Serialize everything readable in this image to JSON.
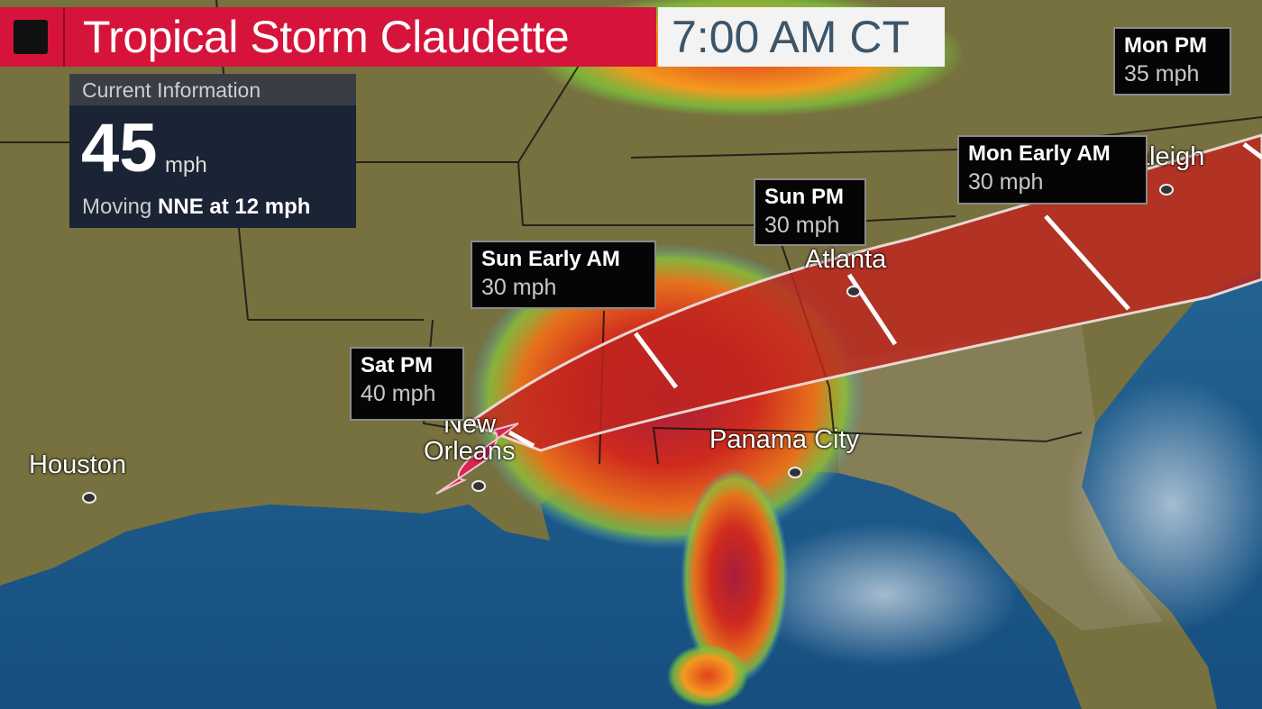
{
  "header": {
    "title": "Tropical Storm Claudette",
    "time": "7:00 AM CT"
  },
  "current_info": {
    "heading": "Current Information",
    "max_wind": "45",
    "wind_unit": "mph",
    "moving_label": "Moving",
    "moving_value": "NNE at 12 mph"
  },
  "forecast_points": [
    {
      "time": "Sat PM",
      "wind": "40 mph"
    },
    {
      "time": "Sun Early AM",
      "wind": "30 mph"
    },
    {
      "time": "Sun PM",
      "wind": "30 mph"
    },
    {
      "time": "Mon Early AM",
      "wind": "30 mph"
    },
    {
      "time": "Mon PM",
      "wind": "35 mph"
    }
  ],
  "cities": {
    "houston": "Houston",
    "new_orleans_line1": "New",
    "new_orleans_line2": "Orleans",
    "panama_city": "Panama City",
    "atlanta": "Atlanta",
    "raleigh": "Raleigh"
  },
  "colors": {
    "title_bar": "#d6133a",
    "cone": "#c0241f",
    "storm_icon": "#e0245e",
    "land": "#7a7440",
    "water": "#1f5f8f"
  },
  "icons": {
    "storm": "tropical-storm-icon",
    "title_marker": "square-icon"
  }
}
